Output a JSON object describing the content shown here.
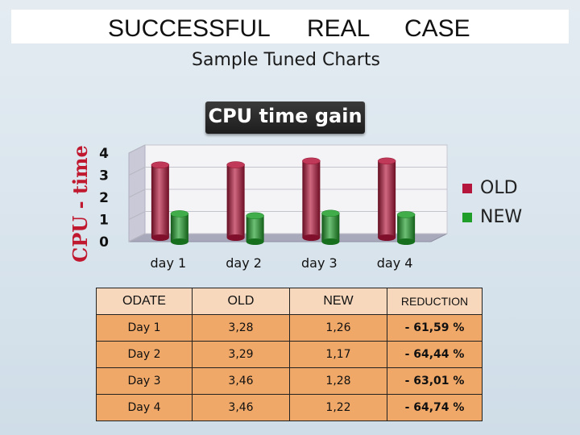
{
  "header": {
    "title_words": [
      "SUCCESSFUL",
      "REAL",
      "CASE"
    ],
    "subtitle": "Sample Tuned Charts"
  },
  "chart_data": {
    "type": "bar",
    "title": "CPU time gain",
    "ylabel": "CPU - time",
    "xlabel": "",
    "categories": [
      "day 1",
      "day 2",
      "day 3",
      "day 4"
    ],
    "yticks": [
      "0",
      "1",
      "2",
      "3",
      "4"
    ],
    "ylim": [
      0,
      4
    ],
    "grid": true,
    "legend_position": "right",
    "series": [
      {
        "name": "OLD",
        "color": "#b5163c",
        "values": [
          3.28,
          3.29,
          3.46,
          3.46
        ]
      },
      {
        "name": "NEW",
        "color": "#1f9e2a",
        "values": [
          1.26,
          1.17,
          1.28,
          1.22
        ]
      }
    ]
  },
  "table": {
    "headers": [
      "ODATE",
      "OLD",
      "NEW",
      "REDUCTION"
    ],
    "rows": [
      [
        "Day 1",
        "3,28",
        "1,26",
        "- 61,59 %"
      ],
      [
        "Day 2",
        "3,29",
        "1,17",
        "- 64,44 %"
      ],
      [
        "Day 3",
        "3,46",
        "1,28",
        "- 63,01 %"
      ],
      [
        "Day 4",
        "3,46",
        "1,22",
        "- 64,74 %"
      ]
    ]
  }
}
